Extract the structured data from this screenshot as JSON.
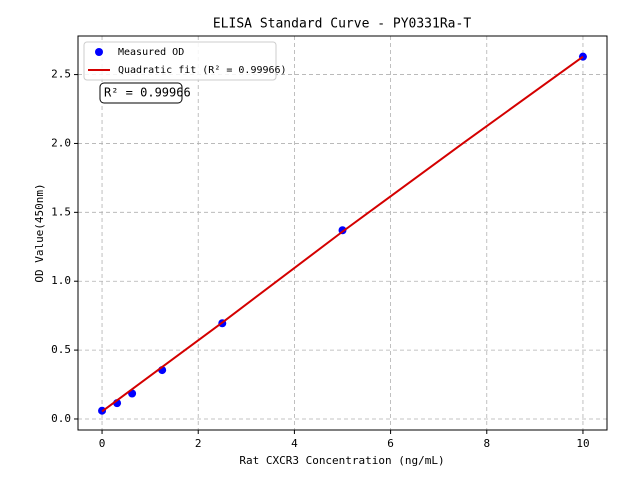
{
  "chart_data": {
    "type": "scatter",
    "title": "ELISA Standard Curve - PY0331Ra-T",
    "x_label": "Rat CXCR3 Concentration (ng/mL)",
    "y_label": "OD Value(450nm)",
    "annotation": "R² = 0.99966",
    "xlim": [
      -0.5,
      10.5
    ],
    "ylim": [
      -0.08,
      2.78
    ],
    "xticks": [
      0,
      2,
      4,
      6,
      8,
      10
    ],
    "yticks": [
      {
        "value": 0,
        "label": "0.0"
      },
      {
        "value": 0.5,
        "label": "0.5"
      },
      {
        "value": 1,
        "label": "1.0"
      },
      {
        "value": 1.5,
        "label": "1.5"
      },
      {
        "value": 2,
        "label": "2.0"
      },
      {
        "value": 2.5,
        "label": "2.5"
      }
    ],
    "grid": true,
    "legend": "upper left",
    "series": [
      {
        "name": "Measured OD",
        "type": "scatter",
        "color": "#0000ff",
        "x": [
          0,
          0.3125,
          0.625,
          1.25,
          2.5,
          5,
          10
        ],
        "values": [
          0.06,
          0.115,
          0.185,
          0.355,
          0.695,
          1.37,
          2.63
        ]
      },
      {
        "name": "Quadratic fit (R² = 0.99966)",
        "type": "line",
        "color": "#d40000",
        "x": [
          0,
          2.5,
          5,
          7.5,
          10
        ],
        "values": [
          0.055,
          0.7,
          1.36,
          2.0,
          2.63
        ]
      }
    ]
  }
}
